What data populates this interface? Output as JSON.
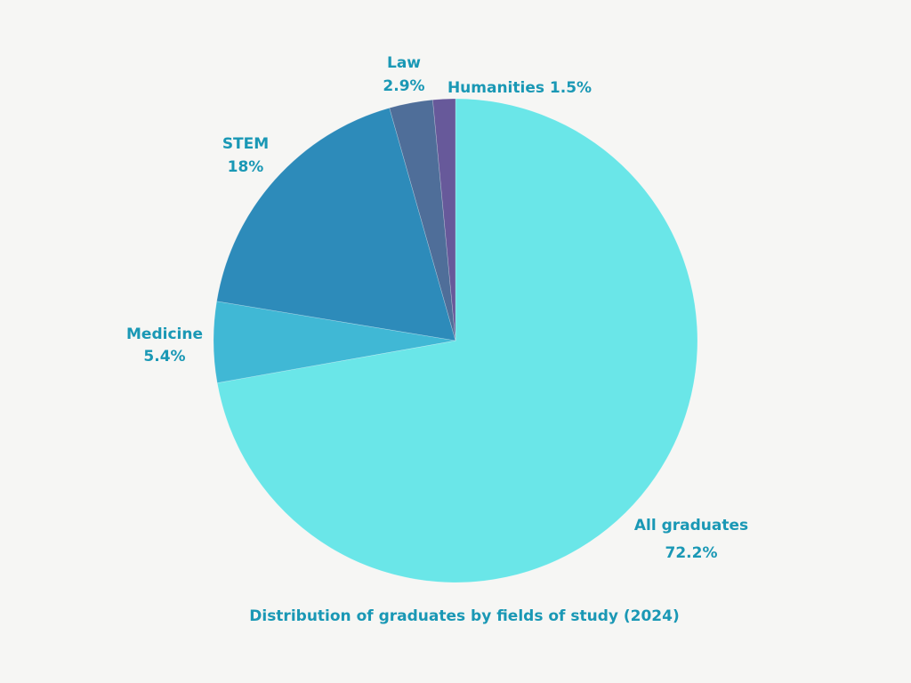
{
  "chart_data": {
    "type": "pie",
    "title": "Distribution of graduates by fields of study (2024)",
    "start_angle": "top",
    "direction": "clockwise",
    "slices": [
      {
        "label": "All graduates",
        "value": 72.2,
        "value_label": "72.2%",
        "color": "#6ae6e8"
      },
      {
        "label": "Medicine",
        "value": 5.4,
        "value_label": "5.4%",
        "color": "#40b8d5"
      },
      {
        "label": "STEM",
        "value": 18,
        "value_label": "18%",
        "color": "#2d8bba"
      },
      {
        "label": "Law",
        "value": 2.9,
        "value_label": "2.9%",
        "color": "#4f6e99"
      },
      {
        "label": "Humanities",
        "value": 1.5,
        "value_label": "1.5%",
        "color": "#67599a"
      }
    ],
    "label_color": "#1a98b5"
  }
}
